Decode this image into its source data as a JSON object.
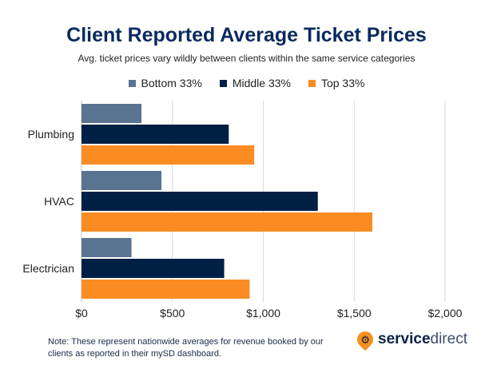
{
  "chart_data": {
    "type": "bar",
    "orientation": "horizontal",
    "title": "Client Reported Average Ticket Prices",
    "subtitle": "Avg. ticket prices vary wildly between clients within the same service categories",
    "categories": [
      "Plumbing",
      "HVAC",
      "Electrician"
    ],
    "series": [
      {
        "name": "Bottom 33%",
        "color": "#5a7390",
        "values": [
          330,
          440,
          275
        ]
      },
      {
        "name": "Middle 33%",
        "color": "#001f44",
        "values": [
          810,
          1300,
          785
        ]
      },
      {
        "name": "Top 33%",
        "color": "#fb8c23",
        "values": [
          950,
          1600,
          925
        ]
      }
    ],
    "xlim": [
      0,
      2000
    ],
    "xticks": [
      0,
      500,
      1000,
      1500,
      2000
    ],
    "xtick_labels": [
      "$0",
      "$500",
      "$1,000",
      "$1,500",
      "$2,000"
    ],
    "grid": true,
    "legend_position": "top"
  },
  "note": "Note: These represent nationwide averages for revenue booked by our clients as reported in their mySD dashboard.",
  "logo": {
    "bold": "service",
    "light": "direct"
  }
}
